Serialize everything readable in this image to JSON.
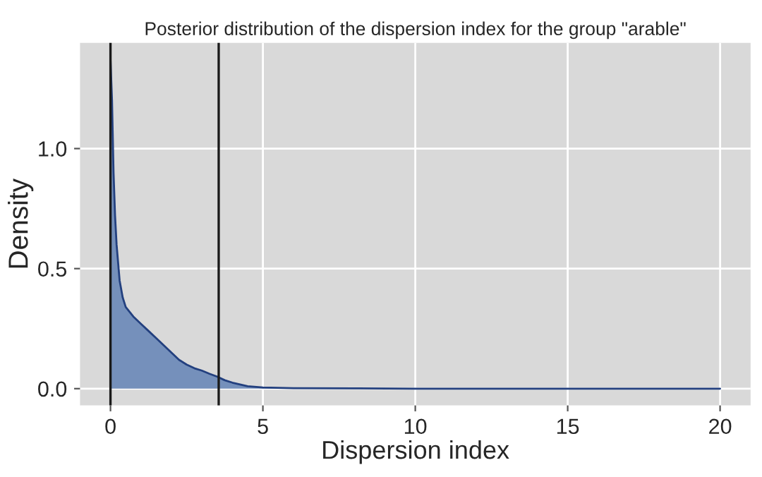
{
  "chart_data": {
    "type": "area",
    "title": "Posterior distribution of the dispersion index for the group \"arable\"",
    "xlabel": "Dispersion index",
    "ylabel": "Density",
    "series": [
      {
        "color": "#7590bb",
        "x": [
          0,
          0.05,
          0.1,
          0.15,
          0.2,
          0.3,
          0.4,
          0.5,
          0.75,
          1.0,
          1.25,
          1.5,
          1.75,
          2.0,
          2.25,
          2.5,
          2.75,
          3.0,
          3.25,
          3.5,
          3.75,
          4.0,
          4.5,
          5.0,
          6.0,
          8.0,
          10.0,
          15.0,
          20.0
        ],
        "values": [
          1.37,
          1.2,
          0.9,
          0.72,
          0.6,
          0.45,
          0.38,
          0.34,
          0.3,
          0.27,
          0.24,
          0.21,
          0.18,
          0.15,
          0.12,
          0.1,
          0.085,
          0.075,
          0.062,
          0.05,
          0.035,
          0.025,
          0.01,
          0.005,
          0.002,
          0.001,
          0.0,
          0.0,
          0.0
        ]
      }
    ],
    "ref_lines": [
      {
        "axis": "x",
        "value": 0,
        "color": "#1a1a1a"
      },
      {
        "axis": "x",
        "value": 3.55,
        "color": "#1a1a1a"
      }
    ],
    "xlim": [
      -1,
      21
    ],
    "ylim": [
      -0.07,
      1.44
    ],
    "xticks": [
      0,
      5,
      10,
      15,
      20
    ],
    "yticks": [
      {
        "value": 0,
        "label": "0.0"
      },
      {
        "value": 0.5,
        "label": "0.5"
      },
      {
        "value": 1.0,
        "label": "1.0"
      }
    ],
    "grid": true
  }
}
